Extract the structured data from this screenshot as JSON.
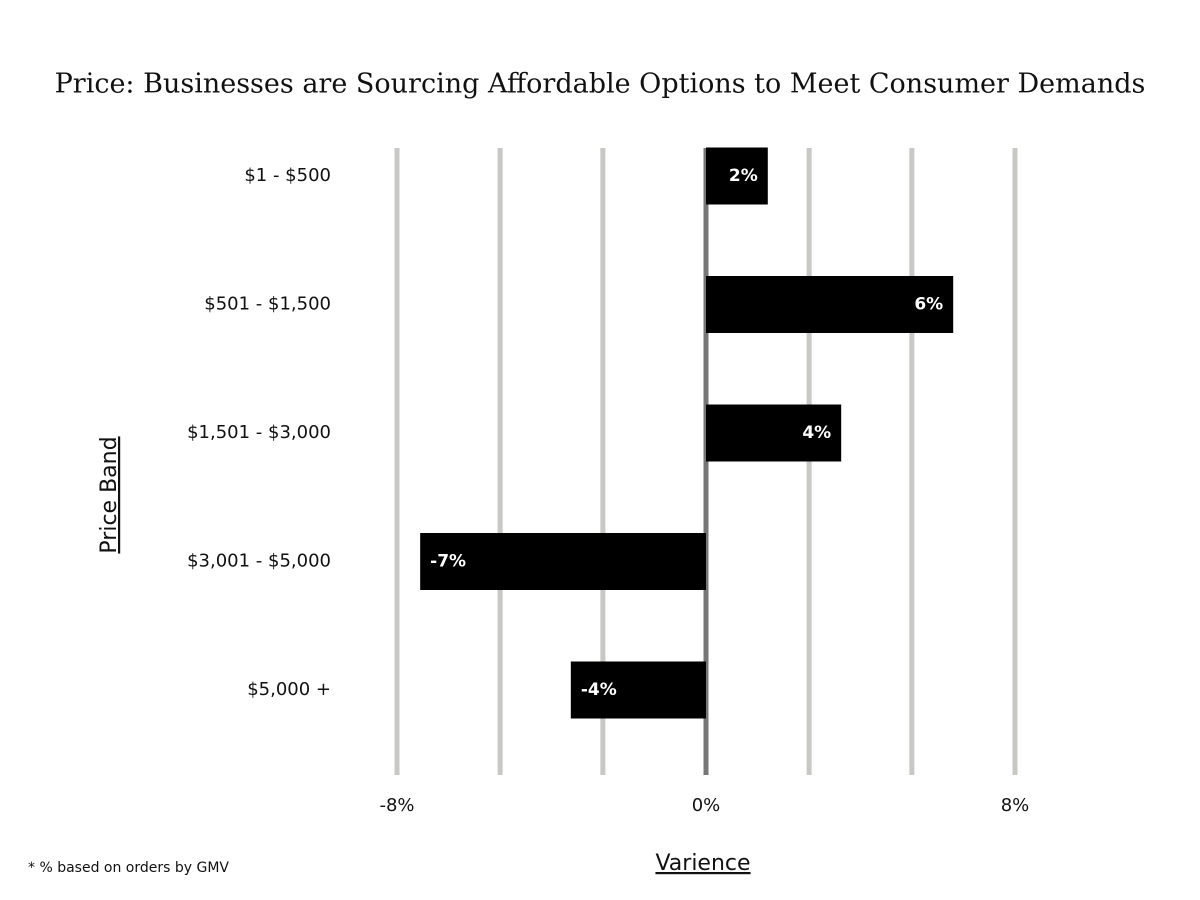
{
  "chart_data": {
    "type": "hbar",
    "title": "Price: Businesses are Sourcing Affordable Options to Meet Consumer Demands",
    "x_label": "Varience",
    "y_label": "Price Band",
    "footnote": "* % based on orders by GMV",
    "categories": [
      "$1 - $500",
      "$501 - $1,500",
      "$1,501 - $3,000",
      "$3,001 - $5,000",
      "$5,000 +"
    ],
    "values": [
      1.6,
      6.4,
      3.5,
      -7.4,
      -3.5
    ],
    "value_labels": [
      "2%",
      "6%",
      "4%",
      "-7%",
      "-4%"
    ],
    "color": "#000000",
    "xlim": [
      -8,
      8
    ],
    "xticks": [
      {
        "value": -8,
        "label": "-8%"
      },
      {
        "value": 0,
        "label": "0%"
      },
      {
        "value": 8,
        "label": "8%"
      }
    ],
    "xgrid": [
      -8,
      -5.33,
      -2.67,
      0,
      2.67,
      5.33,
      8
    ],
    "grid": true
  }
}
